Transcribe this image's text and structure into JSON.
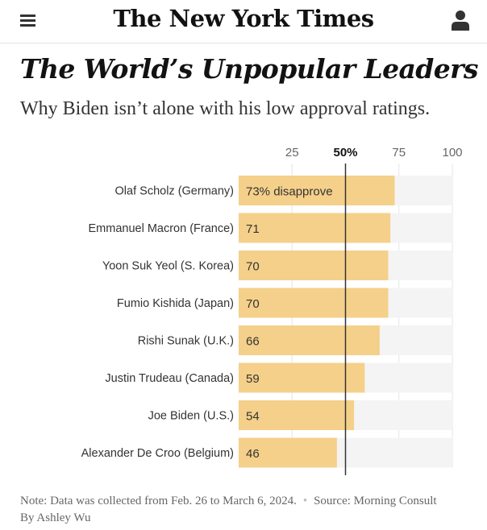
{
  "header": {
    "masthead": "The New York Times",
    "menu_icon": "hamburger-menu-icon",
    "account_icon": "user-account-icon"
  },
  "article": {
    "headline": "The World’s Unpopular Leaders",
    "subhead": "Why Biden isn’t alone with his low approval ratings."
  },
  "chart_data": {
    "type": "bar",
    "orientation": "horizontal",
    "categories": [
      "Olaf Scholz (Germany)",
      "Emmanuel Macron (France)",
      "Yoon Suk Yeol (S. Korea)",
      "Fumio Kishida (Japan)",
      "Rishi Sunak (U.K.)",
      "Justin Trudeau (Canada)",
      "Joe Biden (U.S.)",
      "Alexander De Croo (Belgium)"
    ],
    "values": [
      73,
      71,
      70,
      70,
      66,
      59,
      54,
      46
    ],
    "value_labels": [
      "73% disapprove",
      "71",
      "70",
      "70",
      "66",
      "59",
      "54",
      "46"
    ],
    "xlim": [
      0,
      100
    ],
    "ticks": [
      {
        "value": 25,
        "label": "25"
      },
      {
        "value": 50,
        "label": "50%",
        "highlight": true
      },
      {
        "value": 75,
        "label": "75"
      },
      {
        "value": 100,
        "label": "100"
      }
    ],
    "reference_line": 50,
    "colors": {
      "bar": "#f5d08a",
      "track": "#f4f4f4",
      "reference_line": "#333333",
      "grid": "#e6e6e6"
    }
  },
  "footer": {
    "note": "Note: Data was collected from Feb. 26 to March 6, 2024.",
    "source": "Source: Morning Consult",
    "byline": "By Ashley Wu"
  }
}
